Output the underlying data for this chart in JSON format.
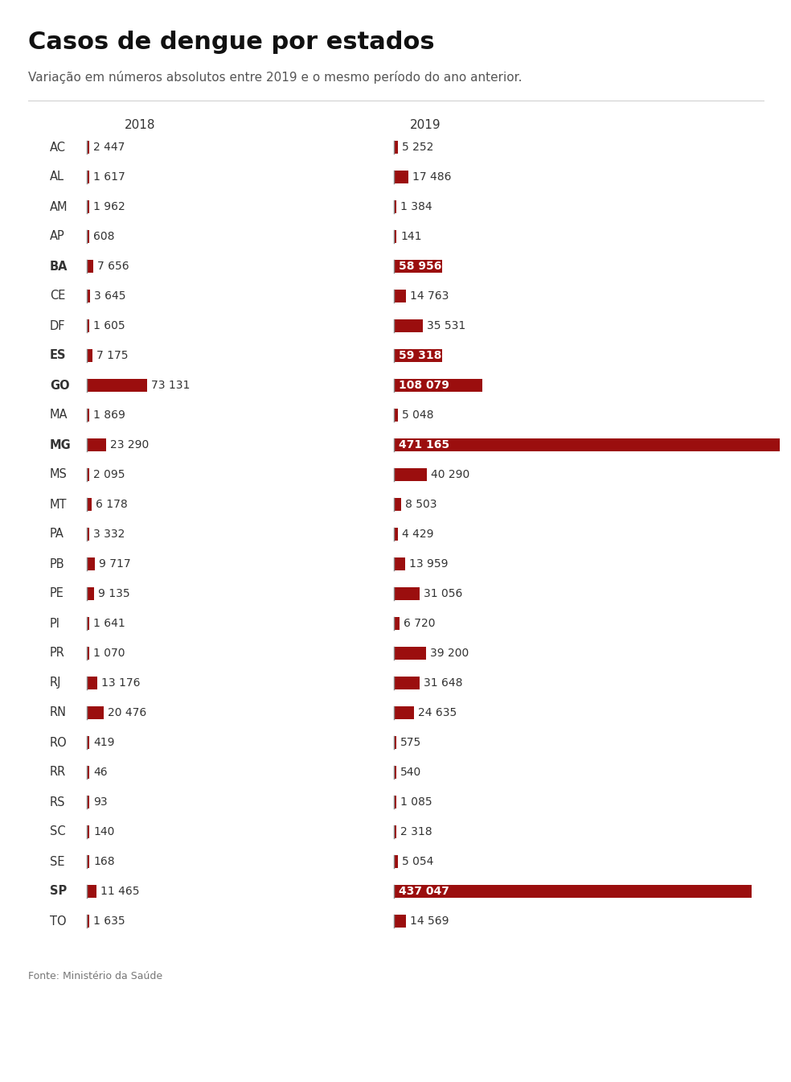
{
  "title": "Casos de dengue por estados",
  "subtitle": "Variação em números absolutos entre 2019 e o mesmo período do ano anterior.",
  "footer": "Fonte: Ministério da Saúde",
  "bar_color": "#9b0e0e",
  "text_color": "#333333",
  "background_color": "#ffffff",
  "col2019_label": "2019",
  "col2018_label": "2018",
  "states": [
    "AC",
    "AL",
    "AM",
    "AP",
    "BA",
    "CE",
    "DF",
    "ES",
    "GO",
    "MA",
    "MG",
    "MS",
    "MT",
    "PA",
    "PB",
    "PE",
    "PI",
    "PR",
    "RJ",
    "RN",
    "RO",
    "RR",
    "RS",
    "SC",
    "SE",
    "SP",
    "TO"
  ],
  "bold_states": [
    "BA",
    "ES",
    "GO",
    "MG",
    "SP"
  ],
  "values_2018": [
    2447,
    1617,
    1962,
    608,
    7656,
    3645,
    1605,
    7175,
    73131,
    1869,
    23290,
    2095,
    6178,
    3332,
    9717,
    9135,
    1641,
    1070,
    13176,
    20476,
    419,
    46,
    93,
    140,
    168,
    11465,
    1635
  ],
  "values_2019": [
    5252,
    17486,
    1384,
    141,
    58956,
    14763,
    35531,
    59318,
    108079,
    5048,
    471165,
    40290,
    8503,
    4429,
    13959,
    31056,
    6720,
    39200,
    31648,
    24635,
    575,
    540,
    1085,
    2318,
    5054,
    437047,
    14569
  ],
  "label_2018": [
    "2 447",
    "1 617",
    "1 962",
    "608",
    "7 656",
    "3 645",
    "1 605",
    "7 175",
    "73 131",
    "1 869",
    "23 290",
    "2 095",
    "6 178",
    "3 332",
    "9 717",
    "9 135",
    "1 641",
    "1 070",
    "13 176",
    "20 476",
    "419",
    "46",
    "93",
    "140",
    "168",
    "11 465",
    "1 635"
  ],
  "label_2019": [
    "5 252",
    "17 486",
    "1 384",
    "141",
    "58 956",
    "14 763",
    "35 531",
    "59 318",
    "108 079",
    "5 048",
    "471 165",
    "40 290",
    "8 503",
    "4 429",
    "13 959",
    "31 056",
    "6 720",
    "39 200",
    "31 648",
    "24 635",
    "575",
    "540",
    "1 085",
    "2 318",
    "5 054",
    "437 047",
    "14 569"
  ],
  "max_value": 471165,
  "inside_label_threshold": 0.1
}
